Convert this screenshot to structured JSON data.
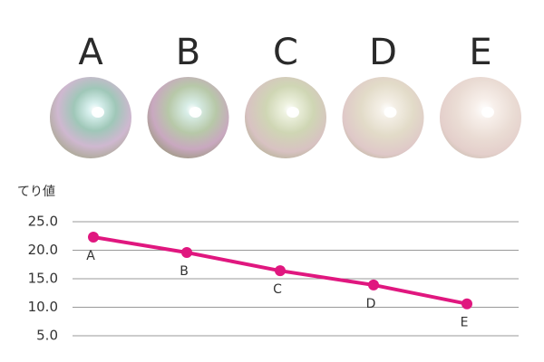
{
  "chart_data": {
    "type": "line",
    "y_label": "てり値",
    "categories": [
      "A",
      "B",
      "C",
      "D",
      "E"
    ],
    "values": [
      22.3,
      19.6,
      16.4,
      13.9,
      10.6
    ],
    "color": "#e0177f",
    "ylim": [
      5,
      25
    ],
    "yticks": [
      {
        "value": 5,
        "label": "5.0"
      },
      {
        "value": 10,
        "label": "10.0"
      },
      {
        "value": 15,
        "label": "15.0"
      },
      {
        "value": 20,
        "label": "20.0"
      },
      {
        "value": 25,
        "label": "25.0"
      }
    ],
    "grid": true
  }
}
